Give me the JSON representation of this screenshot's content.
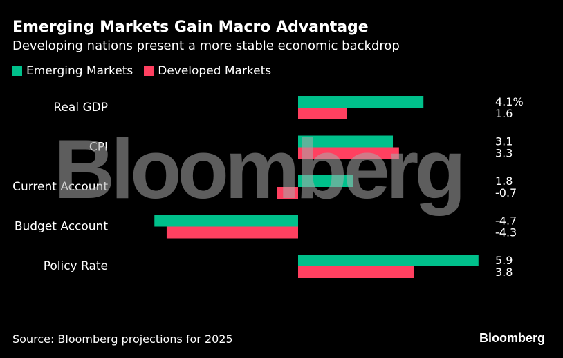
{
  "chart_data": {
    "type": "bar",
    "orientation": "horizontal",
    "title": "Emerging Markets Gain Macro Advantage",
    "subtitle": "Developing nations present a more stable economic backdrop",
    "categories": [
      "Real GDP",
      "CPI",
      "Current Account",
      "Budget Account",
      "Policy Rate"
    ],
    "series": [
      {
        "name": "Emerging Markets",
        "color": "#00c08b",
        "values": [
          4.1,
          3.1,
          1.8,
          -4.7,
          5.9
        ]
      },
      {
        "name": "Developed Markets",
        "color": "#ff4060",
        "values": [
          1.6,
          3.3,
          -0.7,
          -4.3,
          3.8
        ]
      }
    ],
    "value_labels": [
      [
        "4.1%",
        "3.1",
        "1.8",
        "-4.7",
        "5.9"
      ],
      [
        "1.6",
        "3.3",
        "-0.7",
        "-4.3",
        "3.8"
      ]
    ],
    "xlim": [
      -4.7,
      5.9
    ]
  },
  "source": "Source: Bloomberg projections for 2025",
  "brand": "Bloomberg",
  "watermark": "Bloomberg"
}
